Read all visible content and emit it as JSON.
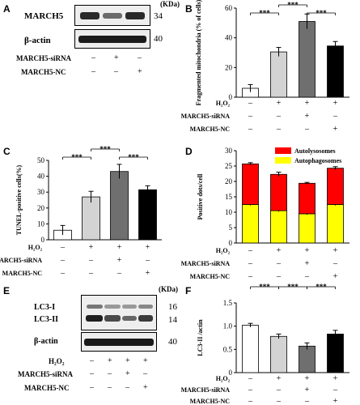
{
  "panels": {
    "A": {
      "label": "A",
      "unit": "(KDa)",
      "blots": [
        {
          "name": "MARCH5",
          "kda": "34"
        },
        {
          "name": "β-actin",
          "kda": "40"
        }
      ],
      "conditions": [
        {
          "name": "MARCH5-siRNA",
          "marks": [
            "–",
            "+",
            "–"
          ]
        },
        {
          "name": "MARCH5-NC",
          "marks": [
            "–",
            "–",
            "+"
          ]
        }
      ]
    },
    "B": {
      "label": "B"
    },
    "C": {
      "label": "C"
    },
    "D": {
      "label": "D"
    },
    "E": {
      "label": "E",
      "unit": "(KDa)",
      "blot_labels": [
        "LC3-I",
        "LC3-II"
      ],
      "kda": [
        "16",
        "14"
      ],
      "actin_label": "β-actin",
      "actin_kda": "40",
      "conditions": [
        {
          "name": "H₂O₂",
          "marks": [
            "–",
            "+",
            "+",
            "+"
          ]
        },
        {
          "name": "MARCH5-siRNA",
          "marks": [
            "–",
            "–",
            "+",
            "–"
          ]
        },
        {
          "name": "MARCH5-NC",
          "marks": [
            "–",
            "–",
            "–",
            "+"
          ]
        }
      ]
    },
    "F": {
      "label": "F"
    }
  },
  "chart_data": [
    {
      "panel": "B",
      "type": "bar",
      "categories": [
        "1",
        "2",
        "3",
        "4"
      ],
      "values": [
        6,
        30.5,
        51,
        34.5
      ],
      "errors": [
        2.5,
        3,
        5,
        3
      ],
      "colors": [
        "#ffffff",
        "#d3d3d3",
        "#6f6f6f",
        "#000000"
      ],
      "ylabel": "Fragmented mitochondria (% of cells)",
      "ylim": [
        0,
        60
      ],
      "yticks": [
        "0",
        "20",
        "40",
        "60"
      ],
      "significance": [
        "***",
        "***",
        "***"
      ],
      "conditions": [
        {
          "name": "H₂O₂",
          "marks": [
            "–",
            "+",
            "+",
            "+"
          ]
        },
        {
          "name": "MARCH5-siRNA",
          "marks": [
            "–",
            "–",
            "+",
            "–"
          ]
        },
        {
          "name": "MARCH5-NC",
          "marks": [
            "–",
            "–",
            "–",
            "+"
          ]
        }
      ]
    },
    {
      "panel": "C",
      "type": "bar",
      "categories": [
        "1",
        "2",
        "3",
        "4"
      ],
      "values": [
        6,
        27,
        43,
        31.5
      ],
      "errors": [
        3,
        3.5,
        4.5,
        2.5
      ],
      "colors": [
        "#ffffff",
        "#d3d3d3",
        "#6f6f6f",
        "#000000"
      ],
      "ylabel": "TUNEL-positive cells(%)",
      "ylim": [
        0,
        50
      ],
      "yticks": [
        "0",
        "10",
        "20",
        "30",
        "40",
        "50"
      ],
      "significance": [
        "***",
        "***",
        "***"
      ],
      "conditions": [
        {
          "name": "H₂O₂",
          "marks": [
            "–",
            "+",
            "+",
            "+"
          ]
        },
        {
          "name": "MARCH5-siRNA",
          "marks": [
            "–",
            "–",
            "+",
            "–"
          ]
        },
        {
          "name": "MARCH5-NC",
          "marks": [
            "–",
            "–",
            "–",
            "+"
          ]
        }
      ]
    },
    {
      "panel": "D",
      "type": "bar",
      "stacked": true,
      "categories": [
        "1",
        "2",
        "3",
        "4"
      ],
      "series": [
        {
          "name": "Autophagosomes",
          "values": [
            12.5,
            10.5,
            9.5,
            12.5
          ],
          "errors": [
            0.3,
            0.3,
            0.3,
            0.3
          ],
          "color": "#ffff00"
        },
        {
          "name": "Autolysosomes",
          "values": [
            13.2,
            11.8,
            9.9,
            11.8
          ],
          "errors": [
            0.4,
            0.7,
            0.3,
            0.5
          ],
          "color": "#ff0000"
        }
      ],
      "ylabel": "Positive dots/cell",
      "ylim": [
        0,
        30
      ],
      "yticks": [
        "0",
        "5",
        "10",
        "15",
        "20",
        "25",
        "30"
      ],
      "legend_position": "top-right",
      "conditions": [
        {
          "name": "H₂O₂",
          "marks": [
            "–",
            "+",
            "+",
            "+"
          ]
        },
        {
          "name": "MARCH5-siRNA",
          "marks": [
            "–",
            "–",
            "+",
            "–"
          ]
        },
        {
          "name": "MARCH5-NC",
          "marks": [
            "–",
            "–",
            "–",
            "+"
          ]
        }
      ]
    },
    {
      "panel": "F",
      "type": "bar",
      "categories": [
        "1",
        "2",
        "3",
        "4"
      ],
      "values": [
        1.02,
        0.78,
        0.57,
        0.83
      ],
      "errors": [
        0.04,
        0.05,
        0.07,
        0.08
      ],
      "colors": [
        "#ffffff",
        "#d3d3d3",
        "#6f6f6f",
        "#000000"
      ],
      "ylabel": "LC3-II /actin",
      "ylim": [
        0,
        1.5
      ],
      "yticks": [
        "0",
        "0.5",
        "1.0",
        "1.5"
      ],
      "significance": [
        "***",
        "***",
        "***"
      ],
      "conditions": [
        {
          "name": "H₂O₂",
          "marks": [
            "–",
            "+",
            "+",
            "+"
          ]
        },
        {
          "name": "MARCH5-siRNA",
          "marks": [
            "–",
            "–",
            "+",
            "–"
          ]
        },
        {
          "name": "MARCH5-NC",
          "marks": [
            "–",
            "–",
            "–",
            "+"
          ]
        }
      ]
    }
  ]
}
